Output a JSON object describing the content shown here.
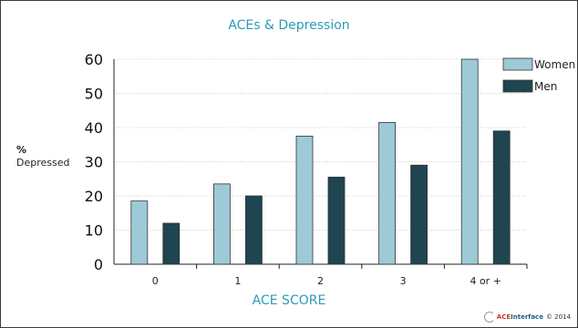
{
  "chart_data": {
    "type": "bar",
    "title": "ACEs & Depression",
    "xlabel": "ACE SCORE",
    "ylabel_line1": "%",
    "ylabel_line2": "Depressed",
    "categories": [
      "0",
      "1",
      "2",
      "3",
      "4 or +"
    ],
    "series": [
      {
        "name": "Women",
        "values": [
          18.5,
          23.5,
          37.5,
          41.5,
          60
        ],
        "color": "#9dcad6"
      },
      {
        "name": "Men",
        "values": [
          12,
          20,
          25.5,
          29,
          39
        ],
        "color": "#1e4550"
      }
    ],
    "ylim": [
      0,
      60
    ],
    "yticks": [
      0,
      10,
      20,
      30,
      40,
      50,
      60
    ],
    "grid": true,
    "legend_position": "top-right"
  },
  "footer": {
    "logo_ace": "ACE",
    "logo_interface": "Interface",
    "copyright": "© 2014"
  }
}
